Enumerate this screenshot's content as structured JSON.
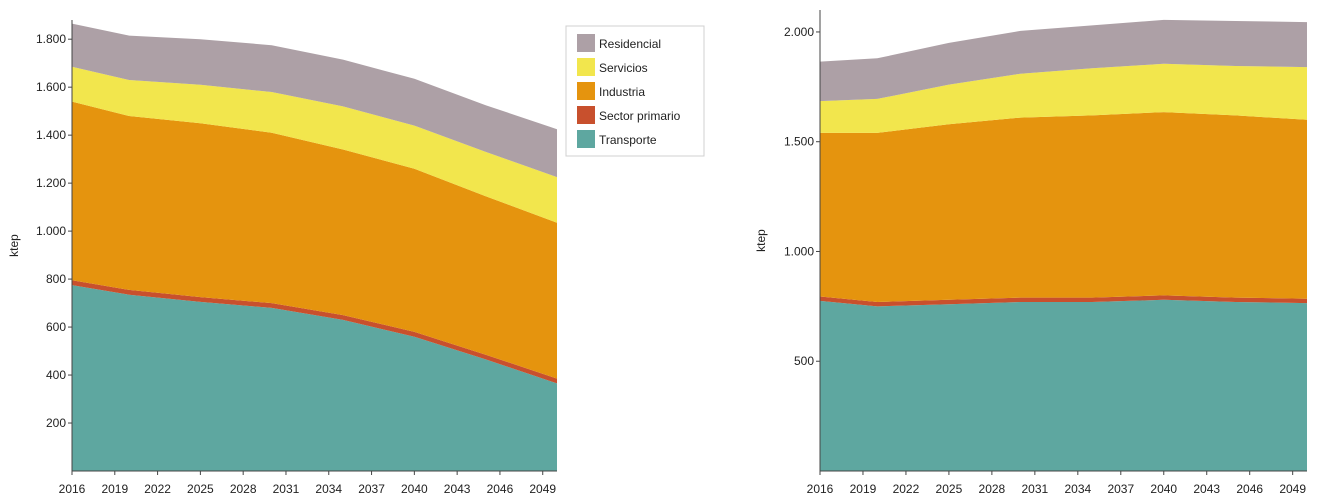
{
  "charts": {
    "chart_left": {
      "type": "area",
      "ylabel": "ktep",
      "yticks": [
        200,
        400,
        600,
        800,
        1000,
        1200,
        1400,
        1600,
        1800
      ],
      "ytick_labels": [
        "200",
        "400",
        "600",
        "800",
        "1.000",
        "1.200",
        "1.400",
        "1.600",
        "1.800"
      ],
      "ylim": [
        0,
        1880
      ],
      "xticks": [
        2016,
        2019,
        2022,
        2025,
        2028,
        2031,
        2034,
        2037,
        2040,
        2043,
        2046,
        2049
      ],
      "xlim": [
        2016,
        2050
      ],
      "x": [
        2016,
        2020,
        2025,
        2030,
        2035,
        2040,
        2045,
        2050
      ],
      "series": [
        {
          "name": "Transporte",
          "values": [
            775,
            735,
            705,
            680,
            630,
            560,
            465,
            365
          ]
        },
        {
          "name": "Sector primario",
          "values": [
            20,
            20,
            20,
            20,
            20,
            20,
            20,
            20
          ]
        },
        {
          "name": "Industria",
          "values": [
            745,
            725,
            725,
            710,
            690,
            680,
            660,
            650
          ]
        },
        {
          "name": "Servicios",
          "values": [
            145,
            150,
            160,
            170,
            180,
            180,
            185,
            190
          ]
        },
        {
          "name": "Residencial",
          "values": [
            180,
            185,
            190,
            195,
            195,
            195,
            195,
            200
          ]
        }
      ]
    },
    "chart_right": {
      "type": "area",
      "ylabel": "ktep",
      "yticks": [
        500,
        1000,
        1500,
        2000
      ],
      "ytick_labels": [
        "500",
        "1.000",
        "1.500",
        "2.000"
      ],
      "ylim": [
        0,
        2100
      ],
      "xticks": [
        2016,
        2019,
        2022,
        2025,
        2028,
        2031,
        2034,
        2037,
        2040,
        2043,
        2046,
        2049
      ],
      "xlim": [
        2016,
        2050
      ],
      "x": [
        2016,
        2020,
        2025,
        2030,
        2035,
        2040,
        2045,
        2050
      ],
      "series": [
        {
          "name": "Transporte",
          "values": [
            775,
            750,
            760,
            770,
            770,
            780,
            770,
            765
          ]
        },
        {
          "name": "Sector primario",
          "values": [
            20,
            20,
            20,
            20,
            20,
            20,
            20,
            20
          ]
        },
        {
          "name": "Industria",
          "values": [
            745,
            770,
            800,
            820,
            830,
            835,
            830,
            815
          ]
        },
        {
          "name": "Servicios",
          "values": [
            145,
            155,
            180,
            200,
            215,
            220,
            225,
            240
          ]
        },
        {
          "name": "Residencial",
          "values": [
            180,
            185,
            190,
            195,
            195,
            200,
            205,
            205
          ]
        }
      ]
    }
  },
  "legend": {
    "items": [
      {
        "label": "Residencial",
        "color": "#ada0a6"
      },
      {
        "label": "Servicios",
        "color": "#f2e64d"
      },
      {
        "label": "Industria",
        "color": "#e5940e"
      },
      {
        "label": "Sector primario",
        "color": "#c8502d"
      },
      {
        "label": "Transporte",
        "color": "#5ea7a0"
      }
    ]
  },
  "colors": {
    "Transporte": "#5ea7a0",
    "Sector primario": "#c8502d",
    "Industria": "#e5940e",
    "Servicios": "#f2e64d",
    "Residencial": "#ada0a6"
  }
}
